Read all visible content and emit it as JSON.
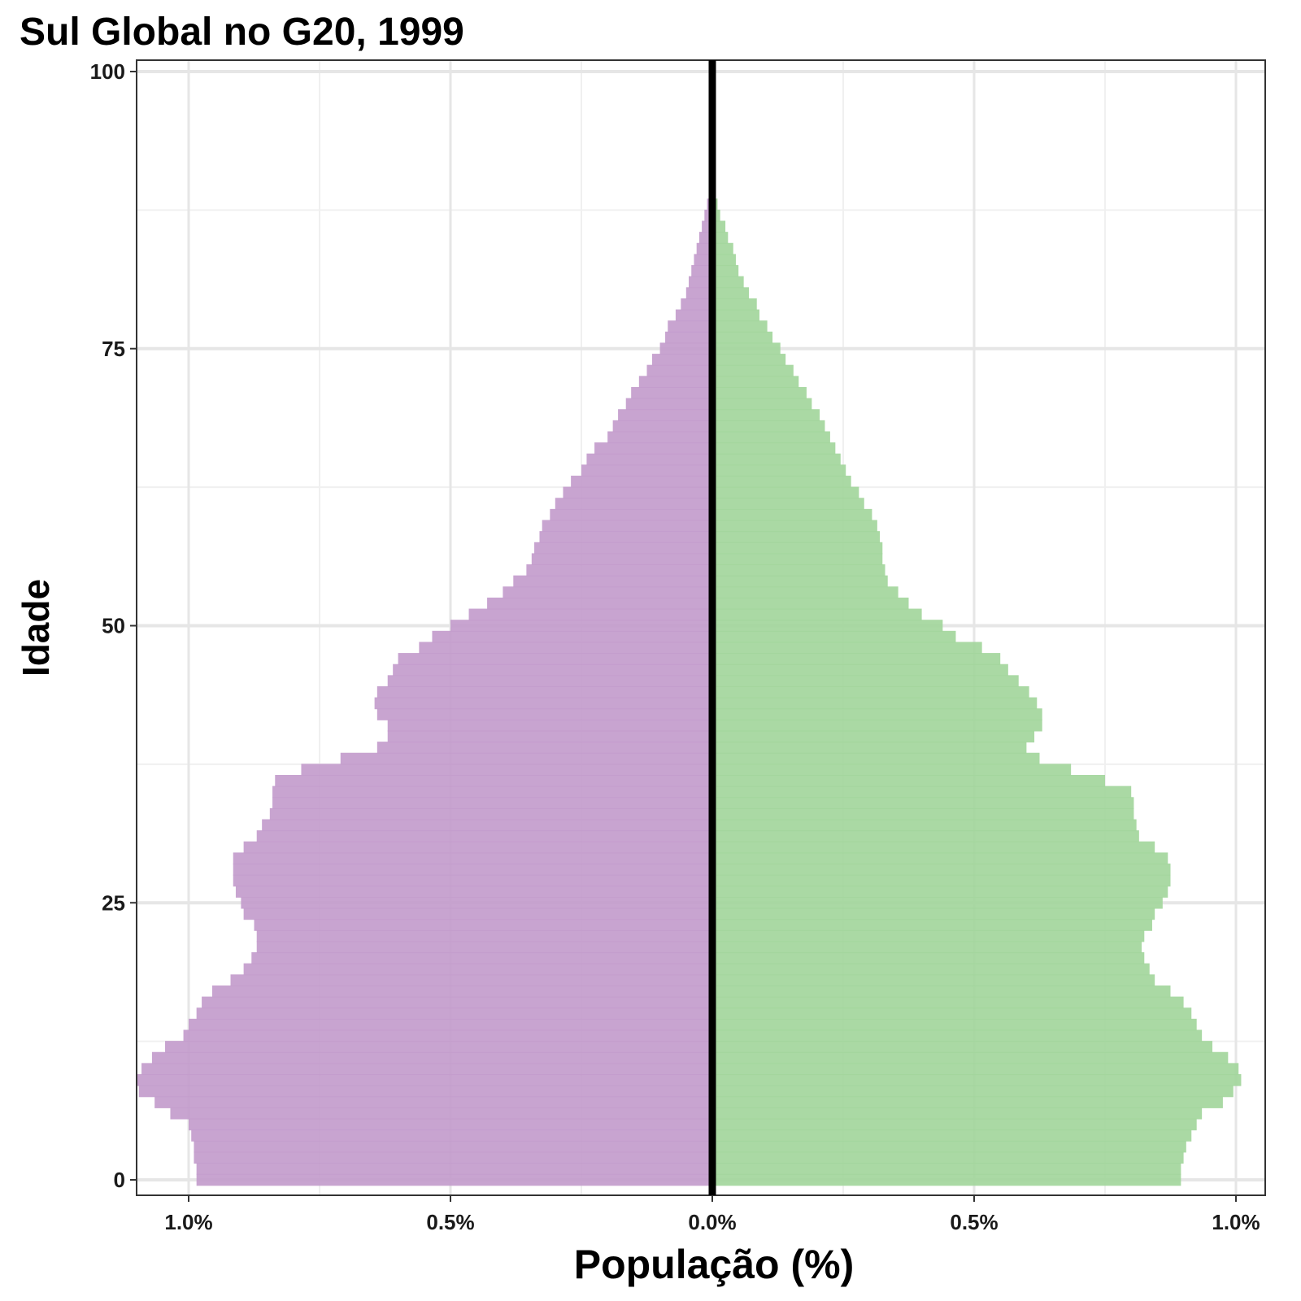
{
  "chart_data": {
    "type": "bar",
    "orientation": "horizontal",
    "title": "Sul Global no G20, 1999",
    "xlabel": "População (%)",
    "ylabel": "Idade",
    "xlim": [
      -1.1,
      1.05
    ],
    "ylim": [
      0,
      100
    ],
    "grid": true,
    "x_ticks": [
      {
        "value": -1.0,
        "label": "1.0%"
      },
      {
        "value": -0.5,
        "label": "0.5%"
      },
      {
        "value": 0.0,
        "label": "0.0%"
      },
      {
        "value": 0.5,
        "label": "0.5%"
      },
      {
        "value": 1.0,
        "label": "1.0%"
      }
    ],
    "y_ticks": [
      {
        "value": 0,
        "label": "0"
      },
      {
        "value": 25,
        "label": "25"
      },
      {
        "value": 50,
        "label": "50"
      },
      {
        "value": 75,
        "label": "75"
      },
      {
        "value": 100,
        "label": "100"
      }
    ],
    "ages": [
      0,
      1,
      2,
      3,
      4,
      5,
      6,
      7,
      8,
      9,
      10,
      11,
      12,
      13,
      14,
      15,
      16,
      17,
      18,
      19,
      20,
      21,
      22,
      23,
      24,
      25,
      26,
      27,
      28,
      29,
      30,
      31,
      32,
      33,
      34,
      35,
      36,
      37,
      38,
      39,
      40,
      41,
      42,
      43,
      44,
      45,
      46,
      47,
      48,
      49,
      50,
      51,
      52,
      53,
      54,
      55,
      56,
      57,
      58,
      59,
      60,
      61,
      62,
      63,
      64,
      65,
      66,
      67,
      68,
      69,
      70,
      71,
      72,
      73,
      74,
      75,
      76,
      77,
      78,
      79,
      80,
      81,
      82,
      83,
      84,
      85,
      86,
      87,
      88,
      89,
      90
    ],
    "series": [
      {
        "side": "left",
        "color": "#c39ccc",
        "values": [
          0.985,
          0.985,
          0.99,
          0.99,
          0.995,
          1.0,
          1.035,
          1.065,
          1.095,
          1.1,
          1.09,
          1.07,
          1.045,
          1.01,
          1.0,
          0.985,
          0.975,
          0.955,
          0.92,
          0.895,
          0.88,
          0.87,
          0.87,
          0.875,
          0.895,
          0.9,
          0.91,
          0.915,
          0.915,
          0.915,
          0.895,
          0.87,
          0.86,
          0.845,
          0.84,
          0.84,
          0.835,
          0.785,
          0.71,
          0.64,
          0.62,
          0.62,
          0.64,
          0.645,
          0.64,
          0.62,
          0.61,
          0.6,
          0.56,
          0.535,
          0.5,
          0.465,
          0.43,
          0.4,
          0.38,
          0.355,
          0.345,
          0.34,
          0.33,
          0.325,
          0.31,
          0.3,
          0.285,
          0.27,
          0.25,
          0.24,
          0.225,
          0.2,
          0.19,
          0.18,
          0.165,
          0.155,
          0.14,
          0.125,
          0.115,
          0.1,
          0.09,
          0.085,
          0.07,
          0.06,
          0.05,
          0.045,
          0.04,
          0.035,
          0.03,
          0.025,
          0.02,
          0.015,
          0.01,
          0.006,
          0.003
        ]
      },
      {
        "side": "right",
        "color": "#a3d69c",
        "values": [
          0.895,
          0.895,
          0.9,
          0.905,
          0.915,
          0.925,
          0.935,
          0.975,
          0.995,
          1.01,
          1.005,
          0.985,
          0.955,
          0.935,
          0.925,
          0.915,
          0.9,
          0.875,
          0.845,
          0.835,
          0.825,
          0.82,
          0.825,
          0.84,
          0.845,
          0.86,
          0.87,
          0.875,
          0.875,
          0.87,
          0.845,
          0.815,
          0.81,
          0.805,
          0.805,
          0.8,
          0.75,
          0.685,
          0.625,
          0.6,
          0.615,
          0.63,
          0.63,
          0.62,
          0.605,
          0.585,
          0.565,
          0.55,
          0.515,
          0.465,
          0.44,
          0.4,
          0.375,
          0.355,
          0.335,
          0.33,
          0.325,
          0.325,
          0.32,
          0.315,
          0.305,
          0.29,
          0.28,
          0.265,
          0.255,
          0.245,
          0.235,
          0.225,
          0.215,
          0.205,
          0.19,
          0.18,
          0.165,
          0.155,
          0.14,
          0.13,
          0.115,
          0.105,
          0.09,
          0.085,
          0.07,
          0.06,
          0.05,
          0.045,
          0.04,
          0.03,
          0.025,
          0.015,
          0.01,
          0.005,
          0.002
        ]
      }
    ]
  }
}
